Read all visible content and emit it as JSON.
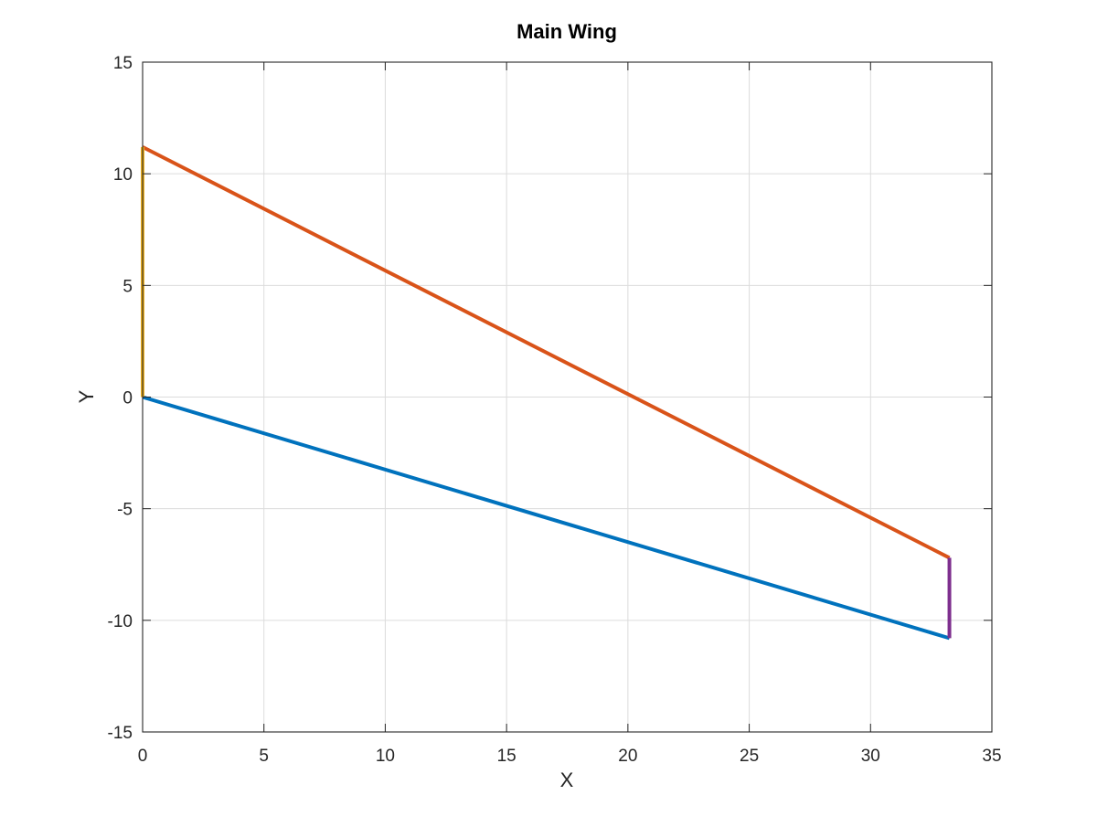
{
  "chart_data": {
    "type": "line",
    "title": "Main Wing",
    "xlabel": "X",
    "ylabel": "Y",
    "xlim": [
      0,
      35
    ],
    "ylim": [
      -15,
      15
    ],
    "xticks": [
      0,
      5,
      10,
      15,
      20,
      25,
      30,
      35
    ],
    "yticks": [
      -15,
      -10,
      -5,
      0,
      5,
      10,
      15
    ],
    "grid": true,
    "legend": "none",
    "series": [
      {
        "color": "#0072BD",
        "x": [
          0,
          33.25
        ],
        "y": [
          0,
          -10.8
        ]
      },
      {
        "color": "#D95319",
        "x": [
          0,
          33.25
        ],
        "y": [
          11.2,
          -7.2
        ]
      },
      {
        "color": "#EDB120",
        "x": [
          0,
          0
        ],
        "y": [
          0,
          11.2
        ]
      },
      {
        "color": "#7E2F8E",
        "x": [
          33.25,
          33.25
        ],
        "y": [
          -10.8,
          -7.2
        ]
      }
    ]
  }
}
